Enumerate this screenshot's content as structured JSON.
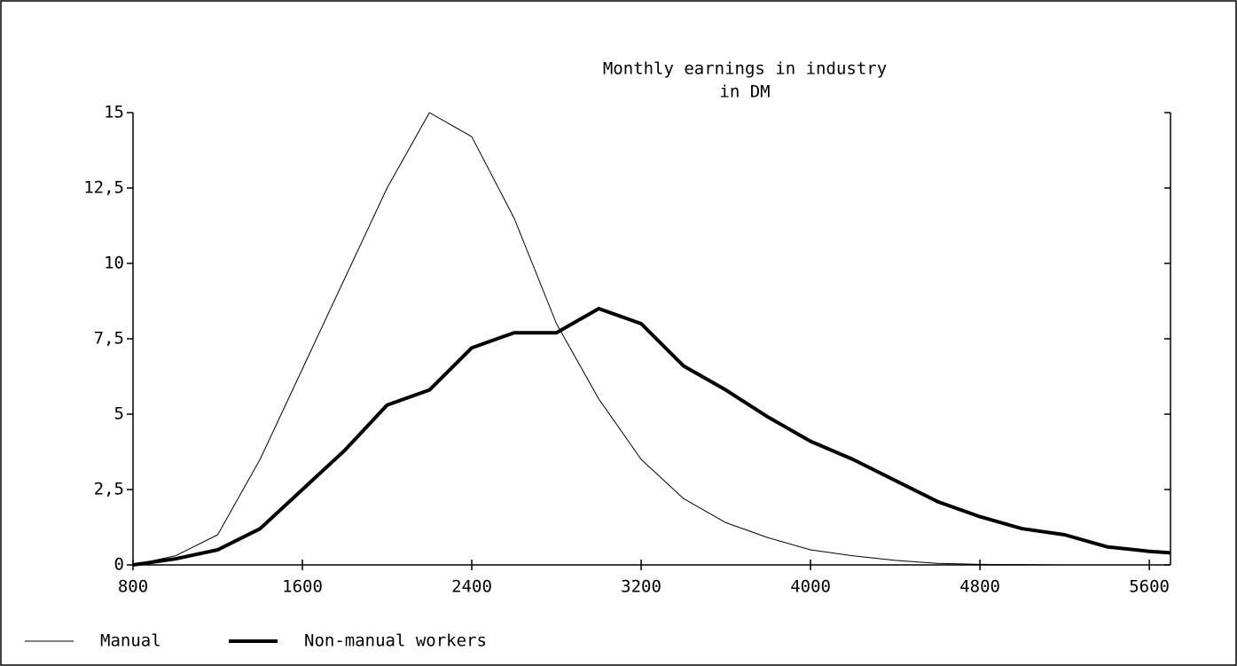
{
  "chart_data": {
    "type": "line",
    "title": [
      "Monthly earnings in industry",
      "in DM"
    ],
    "x": [
      800,
      1000,
      1200,
      1400,
      1600,
      1800,
      2000,
      2200,
      2400,
      2600,
      2800,
      3000,
      3200,
      3400,
      3600,
      3800,
      4000,
      4200,
      4400,
      4600,
      4800,
      5000,
      5200,
      5400,
      5600,
      5700
    ],
    "series": [
      {
        "name": "Manual",
        "color": "#000000",
        "width": 1,
        "values": [
          0,
          0.3,
          1.0,
          3.5,
          6.5,
          9.5,
          12.5,
          15,
          14.2,
          11.5,
          8,
          5.5,
          3.5,
          2.2,
          1.4,
          0.9,
          0.5,
          0.3,
          0.15,
          0.05,
          0.02,
          0.01,
          0,
          null,
          null,
          null
        ]
      },
      {
        "name": "Non-manual workers",
        "color": "#000000",
        "width": 4,
        "values": [
          0,
          0.2,
          0.5,
          1.2,
          2.5,
          3.8,
          5.3,
          5.8,
          7.2,
          7.7,
          7.7,
          8.5,
          8,
          6.6,
          5.8,
          4.9,
          4.1,
          3.5,
          2.8,
          2.1,
          1.6,
          1.2,
          1.0,
          0.6,
          0.45,
          0.4
        ]
      }
    ],
    "xlim": [
      800,
      5700
    ],
    "xticks": [
      800,
      1600,
      2400,
      3200,
      4000,
      4800,
      5600
    ],
    "ylim": [
      0,
      15
    ],
    "yticks": [
      0,
      {
        "value": 2.5,
        "label": "2,5"
      },
      5,
      {
        "value": 7.5,
        "label": "7,5"
      },
      10,
      {
        "value": 12.5,
        "label": "12,5"
      },
      15
    ],
    "legend": "bottom-left"
  }
}
